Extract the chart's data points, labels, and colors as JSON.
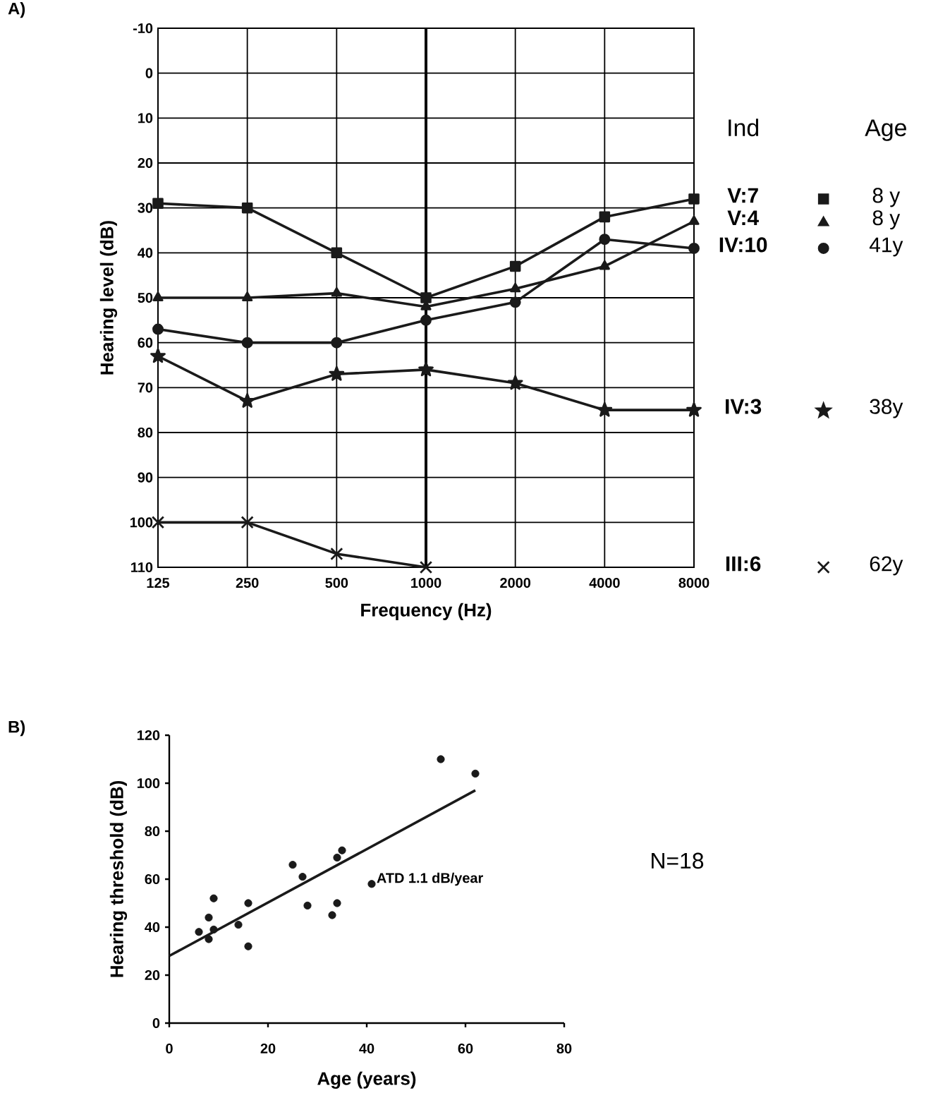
{
  "chart_data": [
    {
      "type": "line",
      "xlabel": "Frequency   (Hz)",
      "ylabel": "Hearing level  (dB)",
      "legend_title": "Ind",
      "categories": [
        "125",
        "250",
        "500",
        "1000",
        "2000",
        "4000",
        "8000"
      ],
      "ylim": [
        110,
        -10
      ],
      "yticks": [
        -10,
        0,
        10,
        20,
        30,
        40,
        50,
        60,
        70,
        80,
        90,
        100,
        110
      ],
      "grid": true,
      "legend": "right",
      "line_style": "solid",
      "ref_lines": [
        {
          "axis": "x",
          "value": "1000",
          "color": "#000000"
        }
      ],
      "series": [
        {
          "name": "V:7",
          "color": "#1a1a1a",
          "marker": "square",
          "values": [
            29,
            30,
            40,
            50,
            43,
            32,
            28
          ]
        },
        {
          "name": "V:4",
          "color": "#1a1a1a",
          "marker": "triangle",
          "values": [
            50,
            50,
            49,
            52,
            48,
            43,
            33
          ]
        },
        {
          "name": "IV:10",
          "color": "#1a1a1a",
          "marker": "circle",
          "values": [
            57,
            60,
            60,
            55,
            51,
            37,
            39
          ]
        },
        {
          "name": "IV:3",
          "color": "#1a1a1a",
          "marker": "star",
          "values": [
            63,
            73,
            67,
            66,
            69,
            75,
            75
          ]
        },
        {
          "name": "III:6",
          "color": "#1a1a1a",
          "marker": "cross",
          "values": [
            100,
            100,
            107,
            110,
            null,
            null,
            null
          ]
        }
      ],
      "annotations": [
        "A)",
        "Age",
        "8 y",
        "8 y",
        "41y",
        "38y",
        "62y"
      ]
    },
    {
      "type": "scatter",
      "xlabel": "Age (years)",
      "ylabel": "Hearing threshold (dB)",
      "xlim": [
        0,
        80
      ],
      "xticks": [
        0,
        20,
        40,
        60,
        80
      ],
      "ylim": [
        0,
        120
      ],
      "yticks": [
        0,
        20,
        40,
        60,
        80,
        100,
        120
      ],
      "grid": false,
      "series": [
        {
          "type": "scatter",
          "color": "#1a1a1a",
          "marker": "circle",
          "x": [
            6,
            8,
            8,
            9,
            9,
            14,
            16,
            16,
            25,
            27,
            28,
            33,
            34,
            34,
            35,
            41,
            55,
            62
          ],
          "values": [
            38,
            44,
            35,
            52,
            39,
            41,
            50,
            32,
            66,
            61,
            49,
            45,
            69,
            50,
            72,
            58,
            110,
            104
          ]
        },
        {
          "type": "line",
          "color": "#1a1a1a",
          "marker": "none",
          "x": [
            0,
            62
          ],
          "values": [
            28,
            97
          ]
        }
      ],
      "annotations": [
        "B)",
        "ATD 1.1 dB/year",
        "N=18"
      ]
    }
  ]
}
